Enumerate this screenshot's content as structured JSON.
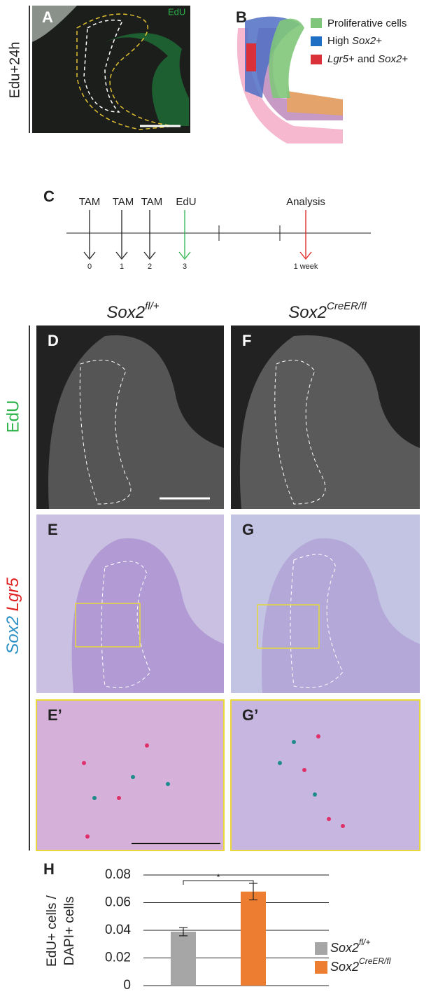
{
  "panels": {
    "A": {
      "label": "A",
      "stain": "EdU",
      "side_label": "Edu+24h"
    },
    "B": {
      "label": "B",
      "legend": [
        [
          "Proliferative cells"
        ],
        [
          "High ",
          "Sox2",
          "+"
        ],
        [
          "Lgr5",
          "+ and ",
          "Sox2",
          "+"
        ]
      ]
    },
    "C": {
      "label": "C",
      "events": [
        "TAM",
        "TAM",
        "TAM",
        "EdU",
        "Analysis"
      ],
      "days": [
        "0",
        "1",
        "2",
        "3",
        "1 week"
      ]
    },
    "columns": [
      {
        "base": "Sox2",
        "sup": "fl/+"
      },
      {
        "base": "Sox2",
        "sup": "CreER/fl"
      }
    ],
    "row_labels": {
      "edu": "EdU",
      "ish": [
        "Sox2",
        "Lgr5"
      ]
    },
    "labels": [
      "D",
      "F",
      "E",
      "G",
      "E’",
      "G’"
    ]
  },
  "chart_data": {
    "type": "bar",
    "panel_label": "H",
    "ylabel": [
      "EdU+ cells /",
      "DAPI+ cells"
    ],
    "ylim": [
      0,
      0.08
    ],
    "yticks": [
      0,
      0.02,
      0.04,
      0.06,
      0.08
    ],
    "grid": true,
    "significance": "*",
    "series": [
      {
        "name": "Sox2",
        "name_sup": "fl/+",
        "color": "#a6a6a6",
        "values": [
          0.039
        ],
        "errors": [
          0.003
        ]
      },
      {
        "name": "Sox2",
        "name_sup": "CreER/fl",
        "color": "#ed7d31",
        "values": [
          0.068
        ],
        "errors": [
          0.006
        ]
      }
    ]
  }
}
